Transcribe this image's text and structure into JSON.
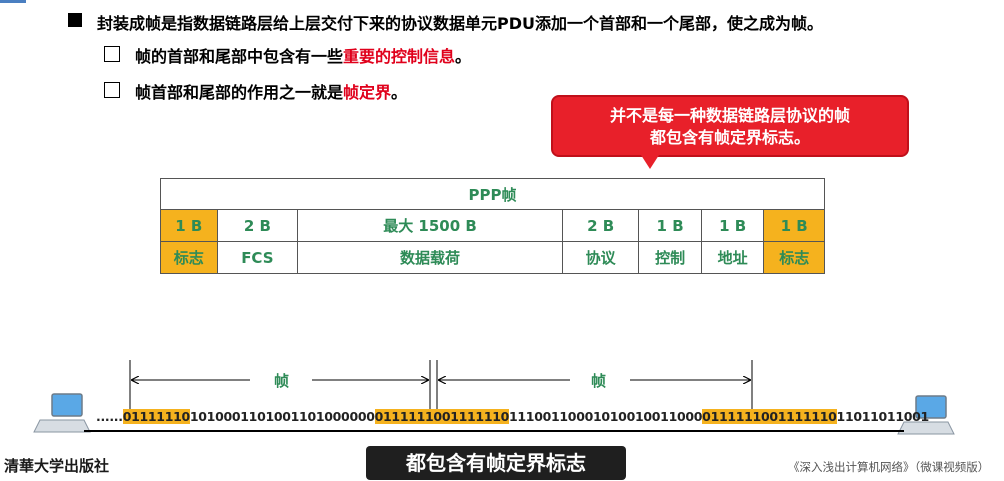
{
  "main_point": {
    "parts": [
      {
        "text": "封装成帧是指数据链路层给上层交付下来的协议数据单元PDU添加一个首部和一个尾部，使之成为帧。",
        "highlight": false
      }
    ]
  },
  "sub_points": [
    {
      "before": "帧的首部和尾部中包含有一些",
      "highlight": "重要的控制信息",
      "after": "。"
    },
    {
      "before": "帧首部和尾部的作用之一就是",
      "highlight": "帧定界",
      "after": "。"
    }
  ],
  "callout": {
    "line1": "并不是每一种数据链路层协议的帧",
    "line2": "都包含有帧定界标志。"
  },
  "ppp_table": {
    "title": "PPP帧",
    "sizes": [
      "1 B",
      "2 B",
      "最大 1500 B",
      "2 B",
      "1 B",
      "1 B",
      "1 B"
    ],
    "names": [
      "标志",
      "FCS",
      "数据载荷",
      "协议",
      "控制",
      "地址",
      "标志"
    ],
    "flag_color": "#f5b21e",
    "text_color": "#2e8b57"
  },
  "bitstream": {
    "segments": [
      {
        "text": "......",
        "flag": false
      },
      {
        "text": "01111110",
        "flag": true
      },
      {
        "text": "1010001101001101000000",
        "flag": false
      },
      {
        "text": "01111110",
        "flag": true
      },
      {
        "text": "01111110",
        "flag": true
      },
      {
        "text": "11100110001010010011000",
        "flag": false
      },
      {
        "text": "01111110",
        "flag": true
      },
      {
        "text": "01111110",
        "flag": true
      },
      {
        "text": "11011011001",
        "flag": false
      }
    ],
    "frame_labels": [
      "帧",
      "帧"
    ]
  },
  "subtitle": "都包含有帧定界标志",
  "publisher": "清華大学出版社",
  "book_title": "《深入浅出计算机网络》（微课视频版）"
}
